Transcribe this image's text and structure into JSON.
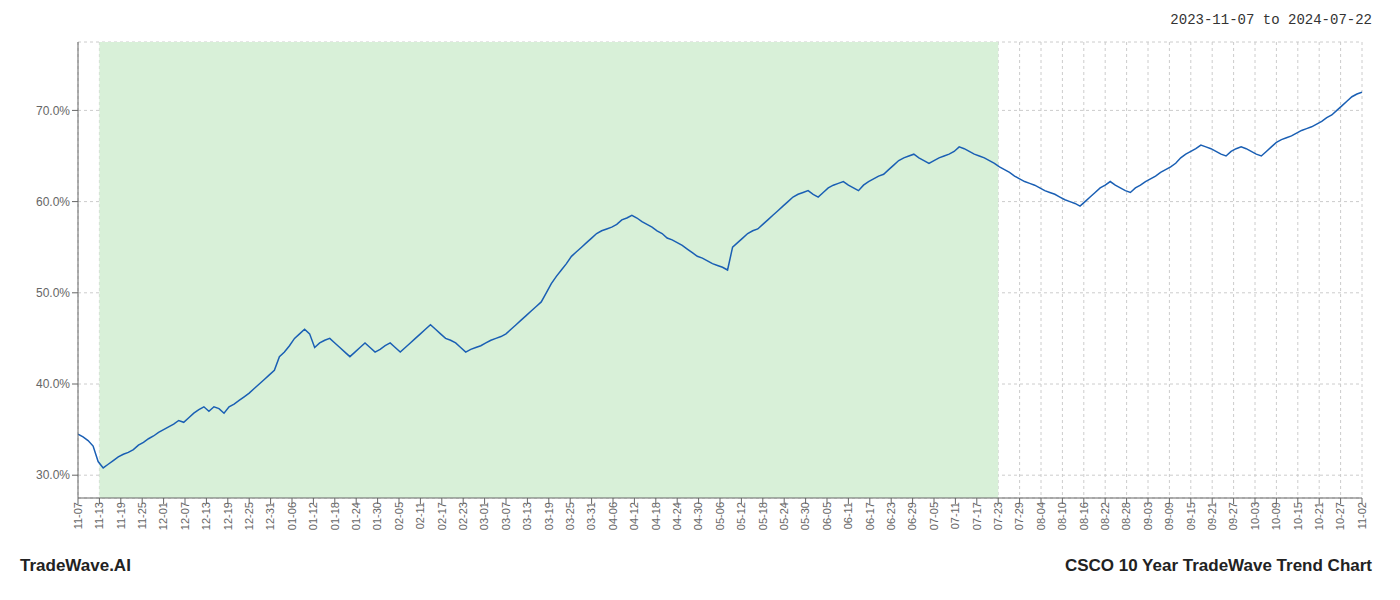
{
  "chart_data": {
    "type": "line",
    "title": "CSCO 10 Year TradeWave Trend Chart",
    "subtitle": "2023-11-07 to 2024-07-22",
    "annotation": "TradeWave.AI",
    "background": "#ffffff",
    "color": "#1a5fb4",
    "grid": true,
    "xlim": [
      0,
      255
    ],
    "xticks": [
      {
        "value": 0,
        "label": "11-07"
      },
      {
        "value": 4.25,
        "label": "11-13"
      },
      {
        "value": 8.5,
        "label": "11-19"
      },
      {
        "value": 12.75,
        "label": "11-25"
      },
      {
        "value": 17,
        "label": "12-01"
      },
      {
        "value": 21.25,
        "label": "12-07"
      },
      {
        "value": 25.5,
        "label": "12-13"
      },
      {
        "value": 29.75,
        "label": "12-19"
      },
      {
        "value": 34,
        "label": "12-25"
      },
      {
        "value": 38.25,
        "label": "12-31"
      },
      {
        "value": 42.5,
        "label": "01-06"
      },
      {
        "value": 46.75,
        "label": "01-12"
      },
      {
        "value": 51,
        "label": "01-18"
      },
      {
        "value": 55.25,
        "label": "01-24"
      },
      {
        "value": 59.5,
        "label": "01-30"
      },
      {
        "value": 63.75,
        "label": "02-05"
      },
      {
        "value": 68,
        "label": "02-11"
      },
      {
        "value": 72.25,
        "label": "02-17"
      },
      {
        "value": 76.5,
        "label": "02-23"
      },
      {
        "value": 80.75,
        "label": "03-01"
      },
      {
        "value": 85,
        "label": "03-07"
      },
      {
        "value": 89.25,
        "label": "03-13"
      },
      {
        "value": 93.5,
        "label": "03-19"
      },
      {
        "value": 97.75,
        "label": "03-25"
      },
      {
        "value": 102,
        "label": "03-31"
      },
      {
        "value": 106.25,
        "label": "04-06"
      },
      {
        "value": 110.5,
        "label": "04-12"
      },
      {
        "value": 114.75,
        "label": "04-18"
      },
      {
        "value": 119,
        "label": "04-24"
      },
      {
        "value": 123.25,
        "label": "04-30"
      },
      {
        "value": 127.5,
        "label": "05-06"
      },
      {
        "value": 131.75,
        "label": "05-12"
      },
      {
        "value": 136,
        "label": "05-18"
      },
      {
        "value": 140.25,
        "label": "05-24"
      },
      {
        "value": 144.5,
        "label": "05-30"
      },
      {
        "value": 148.75,
        "label": "06-05"
      },
      {
        "value": 153,
        "label": "06-11"
      },
      {
        "value": 157.25,
        "label": "06-17"
      },
      {
        "value": 161.5,
        "label": "06-23"
      },
      {
        "value": 165.75,
        "label": "06-29"
      },
      {
        "value": 170,
        "label": "07-05"
      },
      {
        "value": 174.25,
        "label": "07-11"
      },
      {
        "value": 178.5,
        "label": "07-17"
      },
      {
        "value": 182.75,
        "label": "07-23"
      },
      {
        "value": 187,
        "label": "07-29"
      },
      {
        "value": 191.25,
        "label": "08-04"
      },
      {
        "value": 195.5,
        "label": "08-10"
      },
      {
        "value": 199.75,
        "label": "08-16"
      },
      {
        "value": 204,
        "label": "08-22"
      },
      {
        "value": 208.25,
        "label": "08-28"
      },
      {
        "value": 212.5,
        "label": "09-03"
      },
      {
        "value": 216.75,
        "label": "09-09"
      },
      {
        "value": 221,
        "label": "09-15"
      },
      {
        "value": 225.25,
        "label": "09-21"
      },
      {
        "value": 229.5,
        "label": "09-27"
      },
      {
        "value": 233.75,
        "label": "10-03"
      },
      {
        "value": 238,
        "label": "10-09"
      },
      {
        "value": 242.25,
        "label": "10-15"
      },
      {
        "value": 246.5,
        "label": "10-21"
      },
      {
        "value": 250.75,
        "label": "10-27"
      },
      {
        "value": 255,
        "label": "11-02"
      }
    ],
    "ylim": [
      0.275,
      0.775
    ],
    "yticks": [
      {
        "value": 0.3,
        "label": "30.0%"
      },
      {
        "value": 0.4,
        "label": "40.0%"
      },
      {
        "value": 0.5,
        "label": "50.0%"
      },
      {
        "value": 0.6,
        "label": "60.0%"
      },
      {
        "value": 0.7,
        "label": "70.0%"
      }
    ],
    "shaded_span": {
      "from": 4.25,
      "to": 182.75,
      "color": "#d8f0d8"
    },
    "values": [
      0.345,
      0.342,
      0.338,
      0.332,
      0.315,
      0.308,
      0.312,
      0.316,
      0.32,
      0.323,
      0.325,
      0.328,
      0.333,
      0.336,
      0.34,
      0.343,
      0.347,
      0.35,
      0.353,
      0.356,
      0.36,
      0.358,
      0.363,
      0.368,
      0.372,
      0.375,
      0.37,
      0.375,
      0.373,
      0.368,
      0.375,
      0.378,
      0.382,
      0.386,
      0.39,
      0.395,
      0.4,
      0.405,
      0.41,
      0.415,
      0.43,
      0.435,
      0.442,
      0.45,
      0.455,
      0.46,
      0.455,
      0.44,
      0.445,
      0.448,
      0.45,
      0.445,
      0.44,
      0.435,
      0.43,
      0.435,
      0.44,
      0.445,
      0.44,
      0.435,
      0.438,
      0.442,
      0.445,
      0.44,
      0.435,
      0.44,
      0.445,
      0.45,
      0.455,
      0.46,
      0.465,
      0.46,
      0.455,
      0.45,
      0.448,
      0.445,
      0.44,
      0.435,
      0.438,
      0.44,
      0.442,
      0.445,
      0.448,
      0.45,
      0.452,
      0.455,
      0.46,
      0.465,
      0.47,
      0.475,
      0.48,
      0.485,
      0.49,
      0.5,
      0.51,
      0.518,
      0.525,
      0.532,
      0.54,
      0.545,
      0.55,
      0.555,
      0.56,
      0.565,
      0.568,
      0.57,
      0.572,
      0.575,
      0.58,
      0.582,
      0.585,
      0.582,
      0.578,
      0.575,
      0.572,
      0.568,
      0.565,
      0.56,
      0.558,
      0.555,
      0.552,
      0.548,
      0.544,
      0.54,
      0.538,
      0.535,
      0.532,
      0.53,
      0.528,
      0.525,
      0.55,
      0.555,
      0.56,
      0.565,
      0.568,
      0.57,
      0.575,
      0.58,
      0.585,
      0.59,
      0.595,
      0.6,
      0.605,
      0.608,
      0.61,
      0.612,
      0.608,
      0.605,
      0.61,
      0.615,
      0.618,
      0.62,
      0.622,
      0.618,
      0.615,
      0.612,
      0.618,
      0.622,
      0.625,
      0.628,
      0.63,
      0.635,
      0.64,
      0.645,
      0.648,
      0.65,
      0.652,
      0.648,
      0.645,
      0.642,
      0.645,
      0.648,
      0.65,
      0.652,
      0.655,
      0.66,
      0.658,
      0.655,
      0.652,
      0.65,
      0.648,
      0.645,
      0.642,
      0.638,
      0.635,
      0.632,
      0.628,
      0.625,
      0.622,
      0.62,
      0.618,
      0.615,
      0.612,
      0.61,
      0.608,
      0.605,
      0.602,
      0.6,
      0.598,
      0.595,
      0.6,
      0.605,
      0.61,
      0.615,
      0.618,
      0.622,
      0.618,
      0.615,
      0.612,
      0.61,
      0.615,
      0.618,
      0.622,
      0.625,
      0.628,
      0.632,
      0.635,
      0.638,
      0.642,
      0.648,
      0.652,
      0.655,
      0.658,
      0.662,
      0.66,
      0.658,
      0.655,
      0.652,
      0.65,
      0.655,
      0.658,
      0.66,
      0.658,
      0.655,
      0.652,
      0.65,
      0.655,
      0.66,
      0.665,
      0.668,
      0.67,
      0.672,
      0.675,
      0.678,
      0.68,
      0.682,
      0.685,
      0.688,
      0.692,
      0.695,
      0.7,
      0.705,
      0.71,
      0.715,
      0.718,
      0.72
    ]
  }
}
